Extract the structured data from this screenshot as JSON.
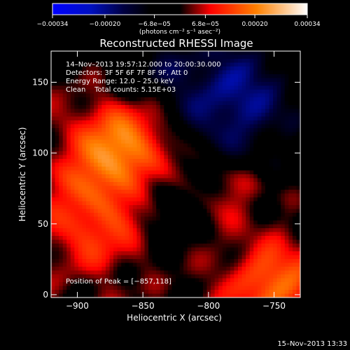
{
  "chart_data": {
    "type": "heatmap",
    "title": "Reconstructed RHESSI Image",
    "xlabel": "Heliocentric X (arcsec)",
    "ylabel": "Heliocentric Y (arcsec)",
    "xlim": [
      -920,
      -730
    ],
    "ylim": [
      -2,
      172
    ],
    "x_ticks": [
      -900,
      -850,
      -800,
      -750
    ],
    "x_tick_labels": [
      "−900",
      "−850",
      "−800",
      "−750"
    ],
    "y_ticks": [
      0,
      50,
      100,
      150
    ],
    "y_tick_labels": [
      "0",
      "50",
      "100",
      "150"
    ],
    "colorbar": {
      "range": [
        -0.00034,
        0.00034
      ],
      "tick_values": [
        -0.00034,
        -0.0002,
        -6.8e-05,
        6.8e-05,
        0.0002,
        0.00034
      ],
      "tick_labels": [
        "−0.00034",
        "−0.00020",
        "−6.8e−05",
        "6.8e−05",
        "0.00020",
        "0.00034"
      ],
      "units": "(photons cm⁻² s⁻¹ asec⁻²)"
    },
    "annotations": {
      "time_range": "14–Nov–2013 19:57:12.000 to 20:00:30.000",
      "detectors": "Detectors: 3F 5F 6F 7F 8F 9F, Att 0",
      "energy_range": "Energy Range: 12.0 – 25.0 keV",
      "clean": "Clean    Total counts: 5.15E+03",
      "peak": "Position of Peak = [−857,118]"
    },
    "peak_position": [
      -857,
      118
    ],
    "grid": false
  },
  "footer": {
    "date": "15–Nov–2013 13:33"
  }
}
